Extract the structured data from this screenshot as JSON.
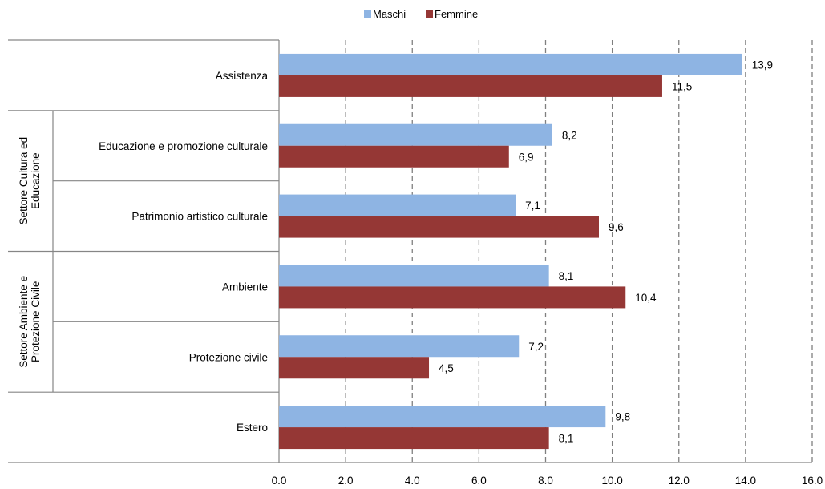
{
  "chart_data": {
    "type": "bar",
    "orientation": "horizontal",
    "categories": [
      "Assistenza",
      "Educazione e promozione culturale",
      "Patrimonio artistico culturale",
      "Ambiente",
      "Protezione civile",
      "Estero"
    ],
    "groups": [
      {
        "lines": [
          "Settore Cultura ed",
          "Educazione"
        ],
        "categories": [
          "Educazione e promozione culturale",
          "Patrimonio artistico culturale"
        ]
      },
      {
        "lines": [
          "Settore Ambiente e",
          "Protezione Civile"
        ],
        "categories": [
          "Ambiente",
          "Protezione civile"
        ]
      }
    ],
    "series": [
      {
        "name": "Maschi",
        "color": "#8EB4E3",
        "values": [
          13.9,
          8.2,
          7.1,
          8.1,
          7.2,
          9.8
        ],
        "labels": [
          "13,9",
          "8,2",
          "7,1",
          "8,1",
          "7,2",
          "9,8"
        ]
      },
      {
        "name": "Femmine",
        "color": "#953735",
        "values": [
          11.5,
          6.9,
          9.6,
          10.4,
          4.5,
          8.1
        ],
        "labels": [
          "11,5",
          "6,9",
          "9,6",
          "10,4",
          "4,5",
          "8,1"
        ]
      }
    ],
    "xlim": [
      0,
      16
    ],
    "xticks": [
      "0.0",
      "2.0",
      "4.0",
      "6.0",
      "8.0",
      "10.0",
      "12.0",
      "14.0",
      "16.0"
    ],
    "grid": "vertical dashed",
    "legend_position": "top"
  }
}
